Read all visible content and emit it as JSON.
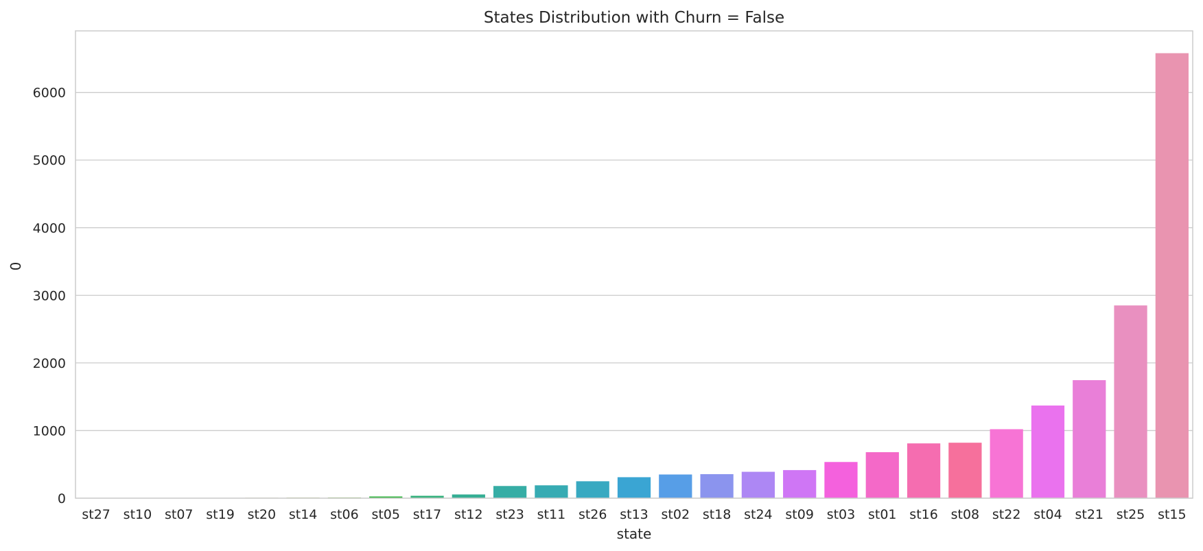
{
  "chart_data": {
    "type": "bar",
    "title": "States Distribution with Churn = False",
    "xlabel": "state",
    "ylabel": "0",
    "categories": [
      "st27",
      "st10",
      "st07",
      "st19",
      "st20",
      "st14",
      "st06",
      "st05",
      "st17",
      "st12",
      "st23",
      "st11",
      "st26",
      "st13",
      "st02",
      "st18",
      "st24",
      "st09",
      "st03",
      "st01",
      "st16",
      "st08",
      "st22",
      "st04",
      "st21",
      "st25",
      "st15"
    ],
    "values": [
      2,
      3,
      4,
      5,
      6,
      8,
      10,
      25,
      35,
      55,
      180,
      190,
      250,
      310,
      350,
      355,
      390,
      415,
      535,
      680,
      810,
      820,
      1020,
      1370,
      1745,
      2850,
      6580
    ],
    "colors": [
      "#f77189",
      "#f57638",
      "#d58e32",
      "#bb9832",
      "#a59f31",
      "#8ea531",
      "#67ad31",
      "#32b33f",
      "#34b17c",
      "#35ae94",
      "#36ada5",
      "#37abb3",
      "#38a9c1",
      "#3aa5d3",
      "#579ee7",
      "#8b94ee",
      "#ad87f4",
      "#cf76f5",
      "#f461dd",
      "#f469c8",
      "#f56db0",
      "#f6709c",
      "#f774d5",
      "#ea72ee",
      "#e97fd8",
      "#e990c0",
      "#e994b0"
    ],
    "yticks": [
      0,
      1000,
      2000,
      3000,
      4000,
      5000,
      6000
    ],
    "ylim": [
      0,
      6910
    ],
    "grid": "horizontal"
  }
}
